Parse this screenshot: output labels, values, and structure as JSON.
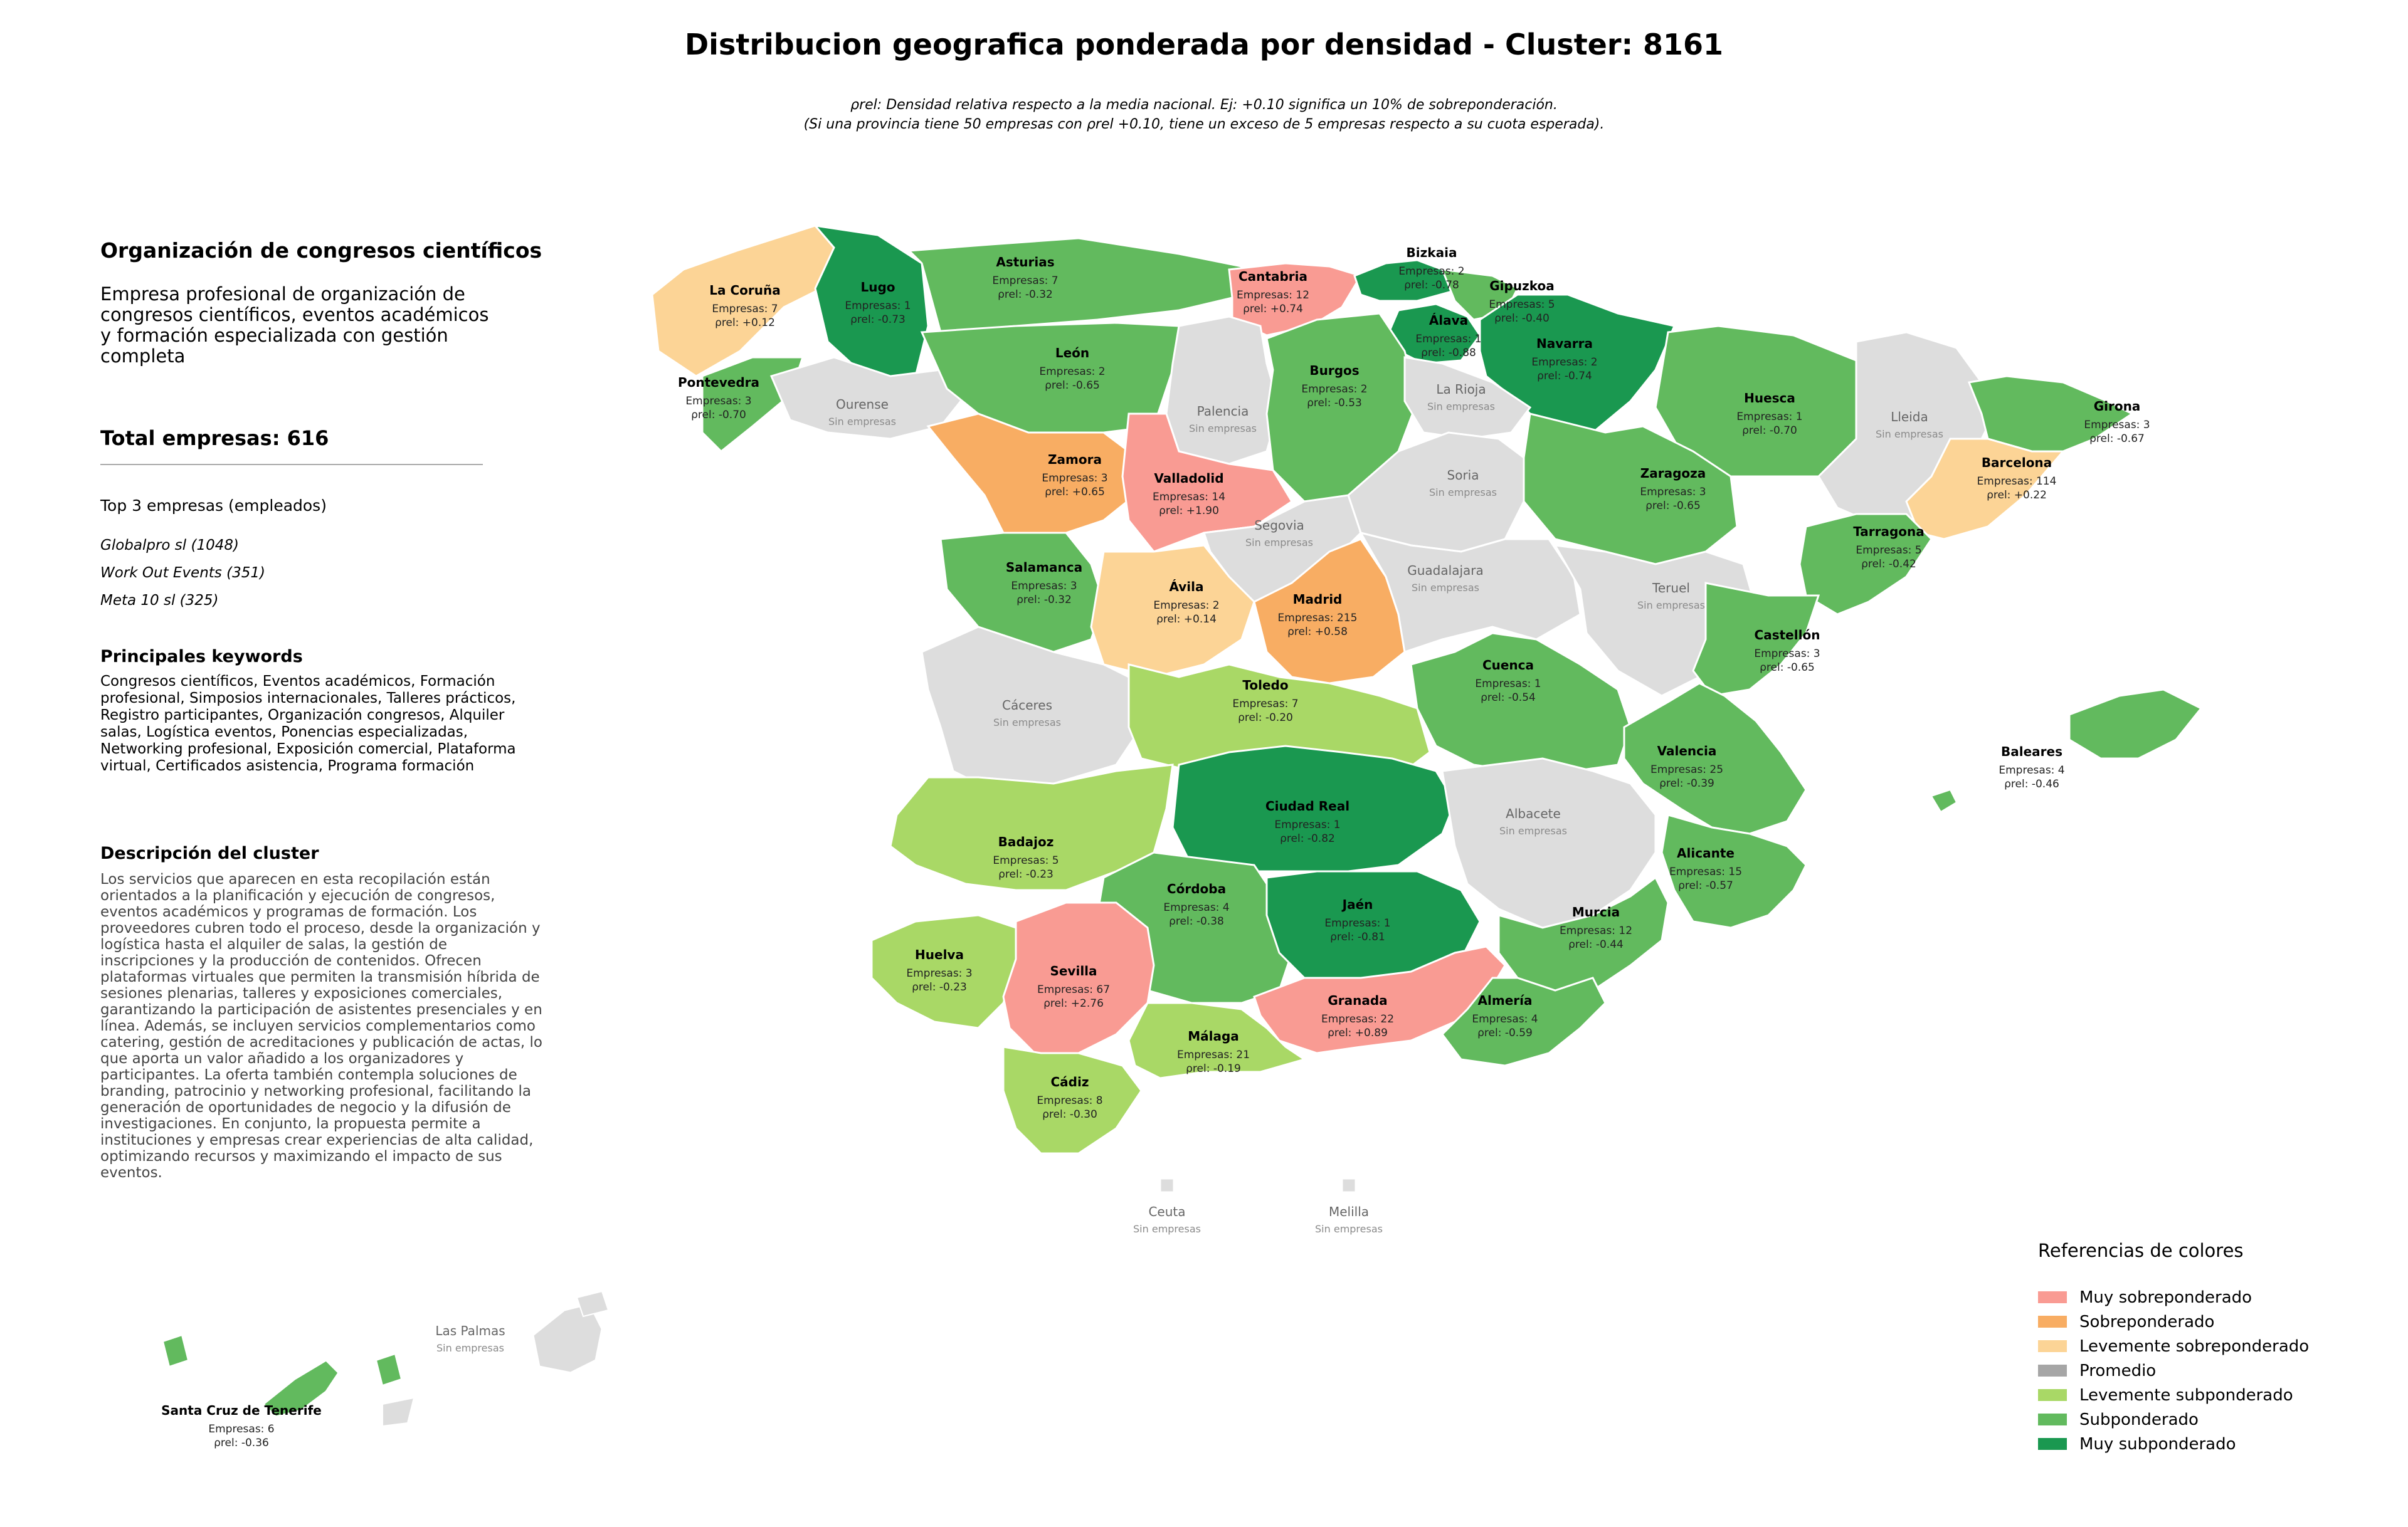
{
  "title": "Distribucion geografica ponderada por densidad - Cluster: 8161",
  "subtitle": "ρrel: Densidad relativa respecto a la media nacional. Ej: +0.10 significa un 10% de sobreponderación.\n(Si una provincia tiene 50 empresas con ρrel +0.10, tiene un exceso de 5 empresas respecto a su cuota esperada).",
  "cluster": {
    "name": "Organización de congresos científicos",
    "description": "Empresa profesional de organización de congresos científicos, eventos académicos y formación especializada con gestión completa",
    "total": "Total empresas: 616",
    "top_heading": "Top 3 empresas (empleados)",
    "top": [
      "Globalpro sl (1048)",
      "Work Out Events (351)",
      "Meta 10 sl (325)"
    ],
    "keywords_heading": "Principales keywords",
    "keywords": "Congresos científicos, Eventos académicos, Formación profesional, Simposios internacionales, Talleres prácticos, Registro participantes, Organización congresos, Alquiler salas, Logística eventos, Ponencias especializadas, Networking profesional, Exposición comercial, Plataforma virtual, Certificados asistencia, Programa formación",
    "desc_heading": "Descripción del cluster",
    "desc_text": "Los servicios que aparecen en esta recopilación están orientados a la planificación y ejecución de congresos, eventos académicos y programas de formación. Los proveedores cubren todo el proceso, desde la organización y logística hasta el alquiler de salas, la gestión de inscripciones y la producción de contenidos. Ofrecen plataformas virtuales que permiten la transmisión híbrida de sesiones plenarias, talleres y exposiciones comerciales, garantizando la participación de asistentes presenciales y en línea. Además, se incluyen servicios complementarios como catering, gestión de acreditaciones y publicación de actas, lo que aporta un valor añadido a los organizadores y participantes. La oferta también contempla soluciones de branding, patrocinio y networking profesional, facilitando la generación de oportunidades de negocio y la difusión de investigaciones. En conjunto, la propuesta permite a instituciones y empresas crear experiencias de alta calidad, optimizando recursos y maximizando el impacto de sus eventos."
  },
  "colors": {
    "muy_sobre": "#f99b93",
    "sobre": "#f8ad63",
    "lev_sobre": "#fcd496",
    "promedio": "#a6a6a6",
    "lev_sub": "#a9d866",
    "sub": "#62ba5e",
    "muy_sub": "#1a9850",
    "none": "#dddddd"
  },
  "legend": {
    "title": "Referencias de colores",
    "items": [
      {
        "label": "Muy sobreponderado",
        "color": "#f99b93"
      },
      {
        "label": "Sobreponderado",
        "color": "#f8ad63"
      },
      {
        "label": "Levemente sobreponderado",
        "color": "#fcd496"
      },
      {
        "label": "Promedio",
        "color": "#a6a6a6"
      },
      {
        "label": "Levemente subponderado",
        "color": "#a9d866"
      },
      {
        "label": "Subponderado",
        "color": "#62ba5e"
      },
      {
        "label": "Muy subponderado",
        "color": "#1a9850"
      }
    ]
  },
  "emp_prefix": "Empresas: ",
  "rho_label": "ρrel: ",
  "none_label": "Sin empresas",
  "provinces": [
    {
      "name": "La Coruña",
      "emp": 7,
      "rho": "+0.12",
      "cat": "lev_sobre"
    },
    {
      "name": "Lugo",
      "emp": 1,
      "rho": "-0.73",
      "cat": "muy_sub"
    },
    {
      "name": "Asturias",
      "emp": 7,
      "rho": "-0.32",
      "cat": "sub"
    },
    {
      "name": "Cantabria",
      "emp": 12,
      "rho": "+0.74",
      "cat": "muy_sobre"
    },
    {
      "name": "Bizkaia",
      "emp": 2,
      "rho": "-0.78",
      "cat": "muy_sub"
    },
    {
      "name": "Gipuzkoa",
      "emp": 5,
      "rho": "-0.40",
      "cat": "sub"
    },
    {
      "name": "Álava",
      "emp": 1,
      "rho": "-0.88",
      "cat": "muy_sub"
    },
    {
      "name": "Navarra",
      "emp": 2,
      "rho": "-0.74",
      "cat": "muy_sub"
    },
    {
      "name": "Pontevedra",
      "emp": 3,
      "rho": "-0.70",
      "cat": "sub"
    },
    {
      "name": "Ourense",
      "emp": null,
      "rho": null,
      "cat": "none"
    },
    {
      "name": "León",
      "emp": 2,
      "rho": "-0.65",
      "cat": "sub"
    },
    {
      "name": "Palencia",
      "emp": null,
      "rho": null,
      "cat": "none"
    },
    {
      "name": "Burgos",
      "emp": 2,
      "rho": "-0.53",
      "cat": "sub"
    },
    {
      "name": "La Rioja",
      "emp": null,
      "rho": null,
      "cat": "none"
    },
    {
      "name": "Huesca",
      "emp": 1,
      "rho": "-0.70",
      "cat": "sub"
    },
    {
      "name": "Lleida",
      "emp": null,
      "rho": null,
      "cat": "none"
    },
    {
      "name": "Girona",
      "emp": 3,
      "rho": "-0.67",
      "cat": "sub"
    },
    {
      "name": "Barcelona",
      "emp": 114,
      "rho": "+0.22",
      "cat": "lev_sobre"
    },
    {
      "name": "Zamora",
      "emp": 3,
      "rho": "+0.65",
      "cat": "sobre"
    },
    {
      "name": "Valladolid",
      "emp": 14,
      "rho": "+1.90",
      "cat": "muy_sobre"
    },
    {
      "name": "Soria",
      "emp": null,
      "rho": null,
      "cat": "none"
    },
    {
      "name": "Zaragoza",
      "emp": 3,
      "rho": "-0.65",
      "cat": "sub"
    },
    {
      "name": "Tarragona",
      "emp": 5,
      "rho": "-0.42",
      "cat": "sub"
    },
    {
      "name": "Salamanca",
      "emp": 3,
      "rho": "-0.32",
      "cat": "sub"
    },
    {
      "name": "Segovia",
      "emp": null,
      "rho": null,
      "cat": "none"
    },
    {
      "name": "Ávila",
      "emp": 2,
      "rho": "+0.14",
      "cat": "lev_sobre"
    },
    {
      "name": "Madrid",
      "emp": 215,
      "rho": "+0.58",
      "cat": "sobre"
    },
    {
      "name": "Guadalajara",
      "emp": null,
      "rho": null,
      "cat": "none"
    },
    {
      "name": "Teruel",
      "emp": null,
      "rho": null,
      "cat": "none"
    },
    {
      "name": "Castellón",
      "emp": 3,
      "rho": "-0.65",
      "cat": "sub"
    },
    {
      "name": "Cáceres",
      "emp": null,
      "rho": null,
      "cat": "none"
    },
    {
      "name": "Toledo",
      "emp": 7,
      "rho": "-0.20",
      "cat": "lev_sub"
    },
    {
      "name": "Cuenca",
      "emp": 1,
      "rho": "-0.54",
      "cat": "sub"
    },
    {
      "name": "Valencia",
      "emp": 25,
      "rho": "-0.39",
      "cat": "sub"
    },
    {
      "name": "Baleares",
      "emp": 4,
      "rho": "-0.46",
      "cat": "sub"
    },
    {
      "name": "Badajoz",
      "emp": 5,
      "rho": "-0.23",
      "cat": "lev_sub"
    },
    {
      "name": "Ciudad Real",
      "emp": 1,
      "rho": "-0.82",
      "cat": "muy_sub"
    },
    {
      "name": "Albacete",
      "emp": null,
      "rho": null,
      "cat": "none"
    },
    {
      "name": "Alicante",
      "emp": 15,
      "rho": "-0.57",
      "cat": "sub"
    },
    {
      "name": "Córdoba",
      "emp": 4,
      "rho": "-0.38",
      "cat": "sub"
    },
    {
      "name": "Jaén",
      "emp": 1,
      "rho": "-0.81",
      "cat": "muy_sub"
    },
    {
      "name": "Murcia",
      "emp": 12,
      "rho": "-0.44",
      "cat": "sub"
    },
    {
      "name": "Huelva",
      "emp": 3,
      "rho": "-0.23",
      "cat": "lev_sub"
    },
    {
      "name": "Sevilla",
      "emp": 67,
      "rho": "+2.76",
      "cat": "muy_sobre"
    },
    {
      "name": "Granada",
      "emp": 22,
      "rho": "+0.89",
      "cat": "muy_sobre"
    },
    {
      "name": "Almería",
      "emp": 4,
      "rho": "-0.59",
      "cat": "sub"
    },
    {
      "name": "Málaga",
      "emp": 21,
      "rho": "-0.19",
      "cat": "lev_sub"
    },
    {
      "name": "Cádiz",
      "emp": 8,
      "rho": "-0.30",
      "cat": "lev_sub"
    },
    {
      "name": "Ceuta",
      "emp": null,
      "rho": null,
      "cat": "none"
    },
    {
      "name": "Melilla",
      "emp": null,
      "rho": null,
      "cat": "none"
    },
    {
      "name": "Las Palmas",
      "emp": null,
      "rho": null,
      "cat": "none"
    },
    {
      "name": "Santa Cruz de Tenerife",
      "emp": 6,
      "rho": "-0.36",
      "cat": "sub"
    }
  ]
}
